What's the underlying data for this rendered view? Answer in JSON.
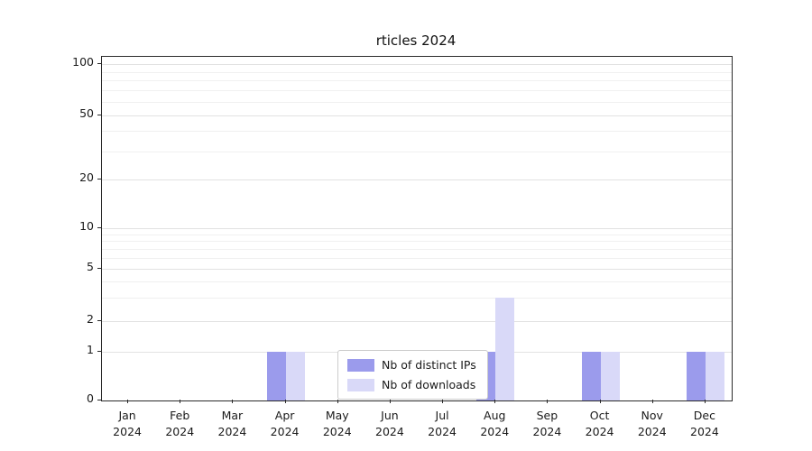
{
  "chart_data": {
    "type": "bar",
    "title": "rticles 2024",
    "categories": [
      "Jan",
      "Feb",
      "Mar",
      "Apr",
      "May",
      "Jun",
      "Jul",
      "Aug",
      "Sep",
      "Oct",
      "Nov",
      "Dec"
    ],
    "category_year": "2024",
    "series": [
      {
        "name": "Nb of distinct IPs",
        "color": "#9b9bec",
        "values": [
          0,
          0,
          0,
          1,
          0,
          0,
          0,
          1,
          0,
          1,
          0,
          1
        ]
      },
      {
        "name": "Nb of downloads",
        "color": "#d9d9f8",
        "values": [
          0,
          0,
          0,
          1,
          0,
          0,
          0,
          3,
          0,
          1,
          0,
          1
        ]
      }
    ],
    "yscale": "log",
    "ylim": [
      0,
      100
    ],
    "yticks": [
      0,
      1,
      2,
      5,
      10,
      20,
      50,
      100
    ],
    "minor_yticks": [
      3,
      4,
      6,
      7,
      8,
      9,
      30,
      40,
      60,
      70,
      80,
      90
    ],
    "grid": true,
    "legend_position": "bottom-center"
  }
}
